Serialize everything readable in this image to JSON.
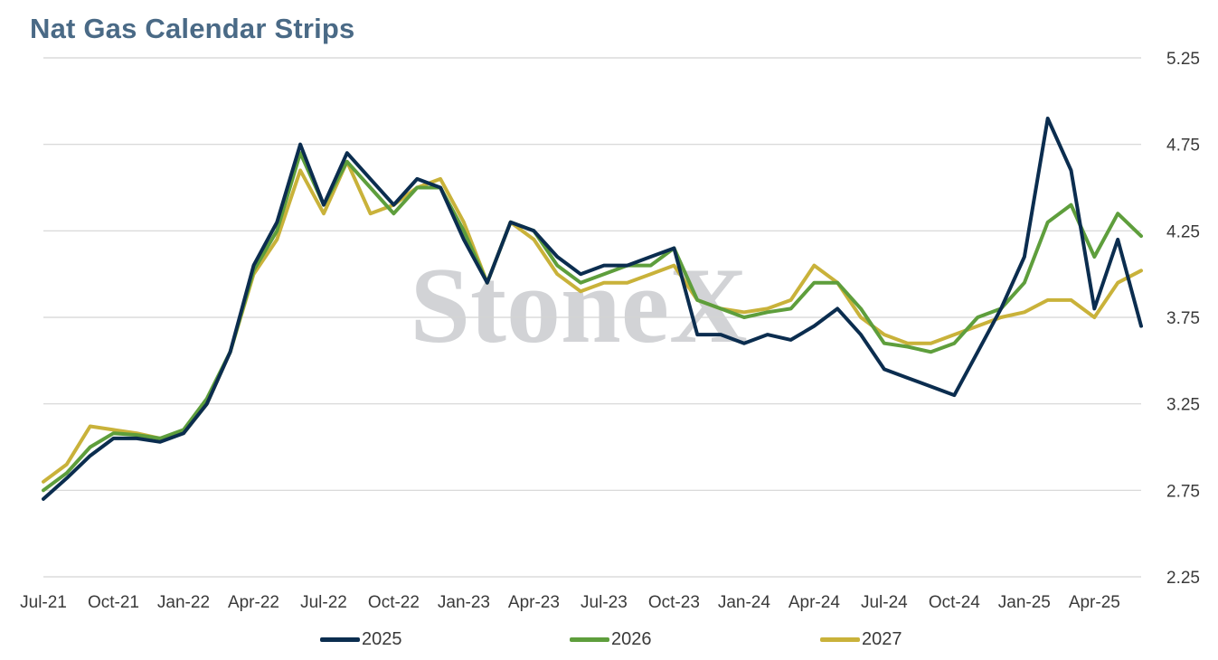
{
  "title": "Nat Gas Calendar Strips",
  "watermark": "StoneX",
  "chart_data": {
    "type": "line",
    "title": "Nat Gas Calendar Strips",
    "xlabel": "",
    "ylabel": "",
    "ylim": [
      2.25,
      5.25
    ],
    "y_ticks": [
      "5.25",
      "4.75",
      "4.25",
      "3.75",
      "3.25",
      "2.75",
      "2.25"
    ],
    "y_axis_position": "right",
    "grid": "horizontal",
    "x_ticks": [
      "Jul-21",
      "Oct-21",
      "Jan-22",
      "Apr-22",
      "Jul-22",
      "Oct-22",
      "Jan-23",
      "Apr-23",
      "Jul-23",
      "Oct-23",
      "Jan-24",
      "Apr-24",
      "Jul-24",
      "Oct-24",
      "Jan-25",
      "Apr-25"
    ],
    "legend_position": "bottom",
    "x": [
      "Jul-21",
      "Aug-21",
      "Sep-21",
      "Oct-21",
      "Nov-21",
      "Dec-21",
      "Jan-22",
      "Feb-22",
      "Mar-22",
      "Apr-22",
      "May-22",
      "Jun-22",
      "Jul-22",
      "Aug-22",
      "Sep-22",
      "Oct-22",
      "Nov-22",
      "Dec-22",
      "Jan-23",
      "Feb-23",
      "Mar-23",
      "Apr-23",
      "May-23",
      "Jun-23",
      "Jul-23",
      "Aug-23",
      "Sep-23",
      "Oct-23",
      "Nov-23",
      "Dec-23",
      "Jan-24",
      "Feb-24",
      "Mar-24",
      "Apr-24",
      "May-24",
      "Jun-24",
      "Jul-24",
      "Aug-24",
      "Sep-24",
      "Oct-24",
      "Nov-24",
      "Dec-24",
      "Jan-25",
      "Feb-25",
      "Mar-25",
      "Apr-25",
      "May-25",
      "Jun-25"
    ],
    "series": [
      {
        "name": "2025",
        "color": "#0b2d4f",
        "values": [
          2.7,
          2.82,
          2.95,
          3.05,
          3.05,
          3.03,
          3.08,
          3.25,
          3.55,
          4.05,
          4.3,
          4.75,
          4.4,
          4.7,
          4.55,
          4.4,
          4.55,
          4.5,
          4.2,
          3.95,
          4.3,
          4.25,
          4.1,
          4.0,
          4.05,
          4.05,
          4.1,
          4.15,
          3.65,
          3.65,
          3.6,
          3.65,
          3.62,
          3.7,
          3.8,
          3.65,
          3.45,
          3.4,
          3.35,
          3.3,
          3.55,
          3.8,
          4.1,
          4.9,
          4.6,
          3.8,
          4.2,
          3.7
        ]
      },
      {
        "name": "2026",
        "color": "#5e9e3c",
        "values": [
          2.75,
          2.85,
          3.0,
          3.08,
          3.07,
          3.05,
          3.1,
          3.28,
          3.55,
          4.02,
          4.25,
          4.7,
          4.4,
          4.65,
          4.5,
          4.35,
          4.5,
          4.5,
          4.25,
          3.95,
          4.3,
          4.25,
          4.05,
          3.95,
          4.0,
          4.05,
          4.05,
          4.15,
          3.85,
          3.8,
          3.75,
          3.78,
          3.8,
          3.95,
          3.95,
          3.8,
          3.6,
          3.58,
          3.55,
          3.6,
          3.75,
          3.8,
          3.95,
          4.3,
          4.4,
          4.1,
          4.35,
          4.22
        ]
      },
      {
        "name": "2027",
        "color": "#c9b23a",
        "values": [
          2.8,
          2.9,
          3.12,
          3.1,
          3.08,
          3.05,
          3.08,
          3.25,
          3.55,
          4.0,
          4.2,
          4.6,
          4.35,
          4.65,
          4.35,
          4.4,
          4.5,
          4.55,
          4.3,
          3.95,
          4.3,
          4.2,
          4.0,
          3.9,
          3.95,
          3.95,
          4.0,
          4.05,
          3.85,
          3.8,
          3.78,
          3.8,
          3.85,
          4.05,
          3.95,
          3.75,
          3.65,
          3.6,
          3.6,
          3.65,
          3.7,
          3.75,
          3.78,
          3.85,
          3.85,
          3.75,
          3.95,
          4.02
        ]
      }
    ]
  }
}
